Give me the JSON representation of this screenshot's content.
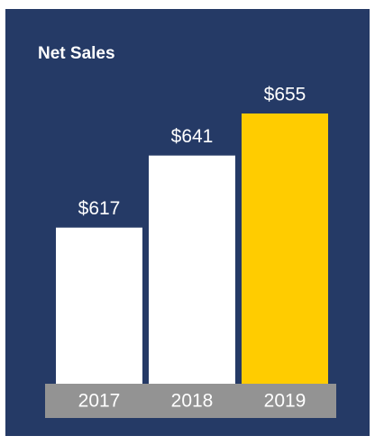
{
  "chart_data": {
    "type": "bar",
    "title": "Net Sales",
    "categories": [
      "2017",
      "2018",
      "2019"
    ],
    "values": [
      617,
      641,
      655
    ],
    "value_labels": [
      "$617",
      "$641",
      "$655"
    ],
    "colors": [
      "#ffffff",
      "#ffffff",
      "#ffcc00"
    ],
    "ylim": [
      565,
      655
    ]
  }
}
